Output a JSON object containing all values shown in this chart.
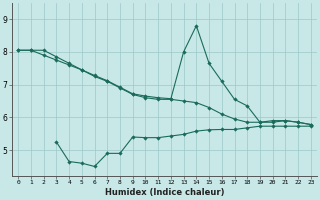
{
  "xlabel": "Humidex (Indice chaleur)",
  "background_color": "#c8e8e8",
  "line_color": "#1a6b5a",
  "xlim": [
    -0.5,
    23.5
  ],
  "ylim": [
    4.2,
    9.5
  ],
  "yticks": [
    5,
    6,
    7,
    8,
    9
  ],
  "xticks": [
    0,
    1,
    2,
    3,
    4,
    5,
    6,
    7,
    8,
    9,
    10,
    11,
    12,
    13,
    14,
    15,
    16,
    17,
    18,
    19,
    20,
    21,
    22,
    23
  ],
  "line1_x": [
    0,
    1,
    2,
    3,
    4,
    5,
    6,
    7,
    8,
    9,
    10,
    11,
    12,
    13,
    14,
    15,
    16,
    17,
    18,
    19,
    20,
    21,
    22,
    23
  ],
  "line1_y": [
    8.05,
    8.05,
    7.9,
    7.75,
    7.6,
    7.45,
    7.25,
    7.1,
    6.9,
    6.7,
    6.6,
    6.55,
    6.55,
    6.5,
    6.45,
    6.3,
    6.1,
    5.95,
    5.85,
    5.85,
    5.9,
    5.9,
    5.85,
    5.78
  ],
  "line2_x": [
    0,
    1,
    2,
    3,
    4,
    5,
    6,
    7,
    8,
    9,
    10,
    11,
    12,
    13,
    14,
    15,
    16,
    17,
    18,
    19,
    20,
    21,
    22,
    23
  ],
  "line2_y": [
    8.05,
    8.05,
    8.05,
    7.85,
    7.65,
    7.45,
    7.28,
    7.12,
    6.92,
    6.72,
    6.65,
    6.6,
    6.57,
    8.0,
    8.8,
    7.65,
    7.1,
    6.55,
    6.35,
    5.85,
    5.85,
    5.9,
    5.85,
    5.78
  ],
  "line3_x": [
    3,
    4,
    5,
    6,
    7,
    8,
    9,
    10,
    11,
    12,
    13,
    14,
    15,
    16,
    17,
    18,
    19,
    20,
    21,
    22,
    23
  ],
  "line3_y": [
    5.25,
    4.65,
    4.6,
    4.5,
    4.9,
    4.9,
    5.4,
    5.38,
    5.38,
    5.43,
    5.48,
    5.58,
    5.62,
    5.63,
    5.63,
    5.68,
    5.73,
    5.73,
    5.73,
    5.73,
    5.73
  ]
}
